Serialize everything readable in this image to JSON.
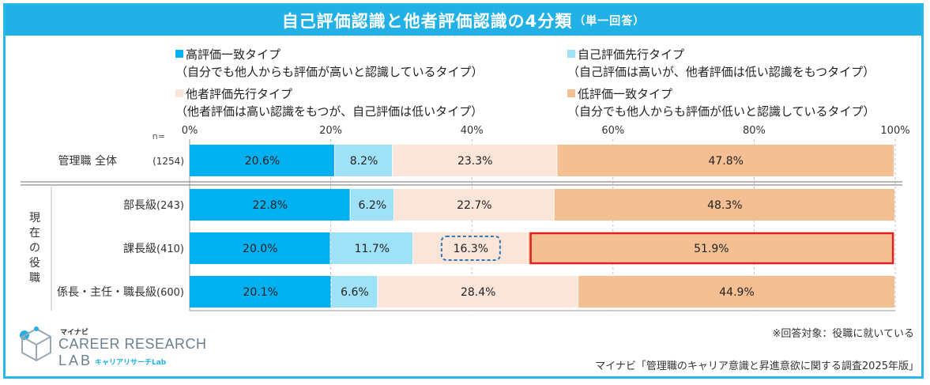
{
  "title": {
    "main": "自己評価認識と他者評価認識の4分類",
    "sub": "（単一回答）"
  },
  "legend": [
    {
      "label": "高評価一致タイプ",
      "desc": "（自分でも他人からも評価が高いと認識しているタイプ）",
      "color": "#00b0f0"
    },
    {
      "label": "自己評価先行タイプ",
      "desc": "（自己評価は高いが、他者評価は低い認識をもつタイプ）",
      "color": "#9fe2f8"
    },
    {
      "label": "他者評価先行タイプ",
      "desc": "（他者評価は高い認識をもつが、自己評価は低いタイプ）",
      "color": "#fbe5d8"
    },
    {
      "label": "低評価一致タイプ",
      "desc": "（自分でも他人からも評価が低いと認識しているタイプ）",
      "color": "#f5bf94"
    }
  ],
  "n_label": "n=",
  "group_label": "現在の役職",
  "chart_data": {
    "type": "bar",
    "orientation": "horizontal",
    "stacked": true,
    "xlim": [
      0,
      100
    ],
    "xticks": [
      "0%",
      "20%",
      "40%",
      "60%",
      "80%",
      "100%"
    ],
    "categories": [
      {
        "label": "管理職 全体",
        "n": "(1254)"
      },
      {
        "label": "部長級",
        "n": "(243)"
      },
      {
        "label": "課長級",
        "n": "(410)"
      },
      {
        "label": "係長・主任・職長級",
        "n": "(600)"
      }
    ],
    "series": [
      {
        "name": "高評価一致タイプ",
        "values": [
          20.6,
          22.8,
          20.0,
          20.1
        ],
        "labels": [
          "20.6%",
          "22.8%",
          "20.0%",
          "20.1%"
        ]
      },
      {
        "name": "自己評価先行タイプ",
        "values": [
          8.2,
          6.2,
          11.7,
          6.6
        ],
        "labels": [
          "8.2%",
          "6.2%",
          "11.7%",
          "6.6%"
        ]
      },
      {
        "name": "他者評価先行タイプ",
        "values": [
          23.3,
          22.7,
          16.3,
          28.4
        ],
        "labels": [
          "23.3%",
          "22.7%",
          "16.3%",
          "28.4%"
        ]
      },
      {
        "name": "低評価一致タイプ",
        "values": [
          47.8,
          48.3,
          51.9,
          44.9
        ],
        "labels": [
          "47.8%",
          "48.3%",
          "51.9%",
          "44.9%"
        ]
      }
    ],
    "highlights": [
      {
        "row": 2,
        "series": 2,
        "style": "dashed-box",
        "color": "#2e75b6"
      },
      {
        "row": 2,
        "series": 3,
        "style": "solid-box",
        "color": "#e02020"
      }
    ]
  },
  "logo": {
    "small": "マイナビ",
    "main": "CAREER RESEARCH",
    "lab": "LAB",
    "sub": "キャリアリサーチLab"
  },
  "note": "※回答対象：役職に就いている",
  "source": "マイナビ「管理職のキャリア意識と昇進意欲に関する調査2025年版」"
}
